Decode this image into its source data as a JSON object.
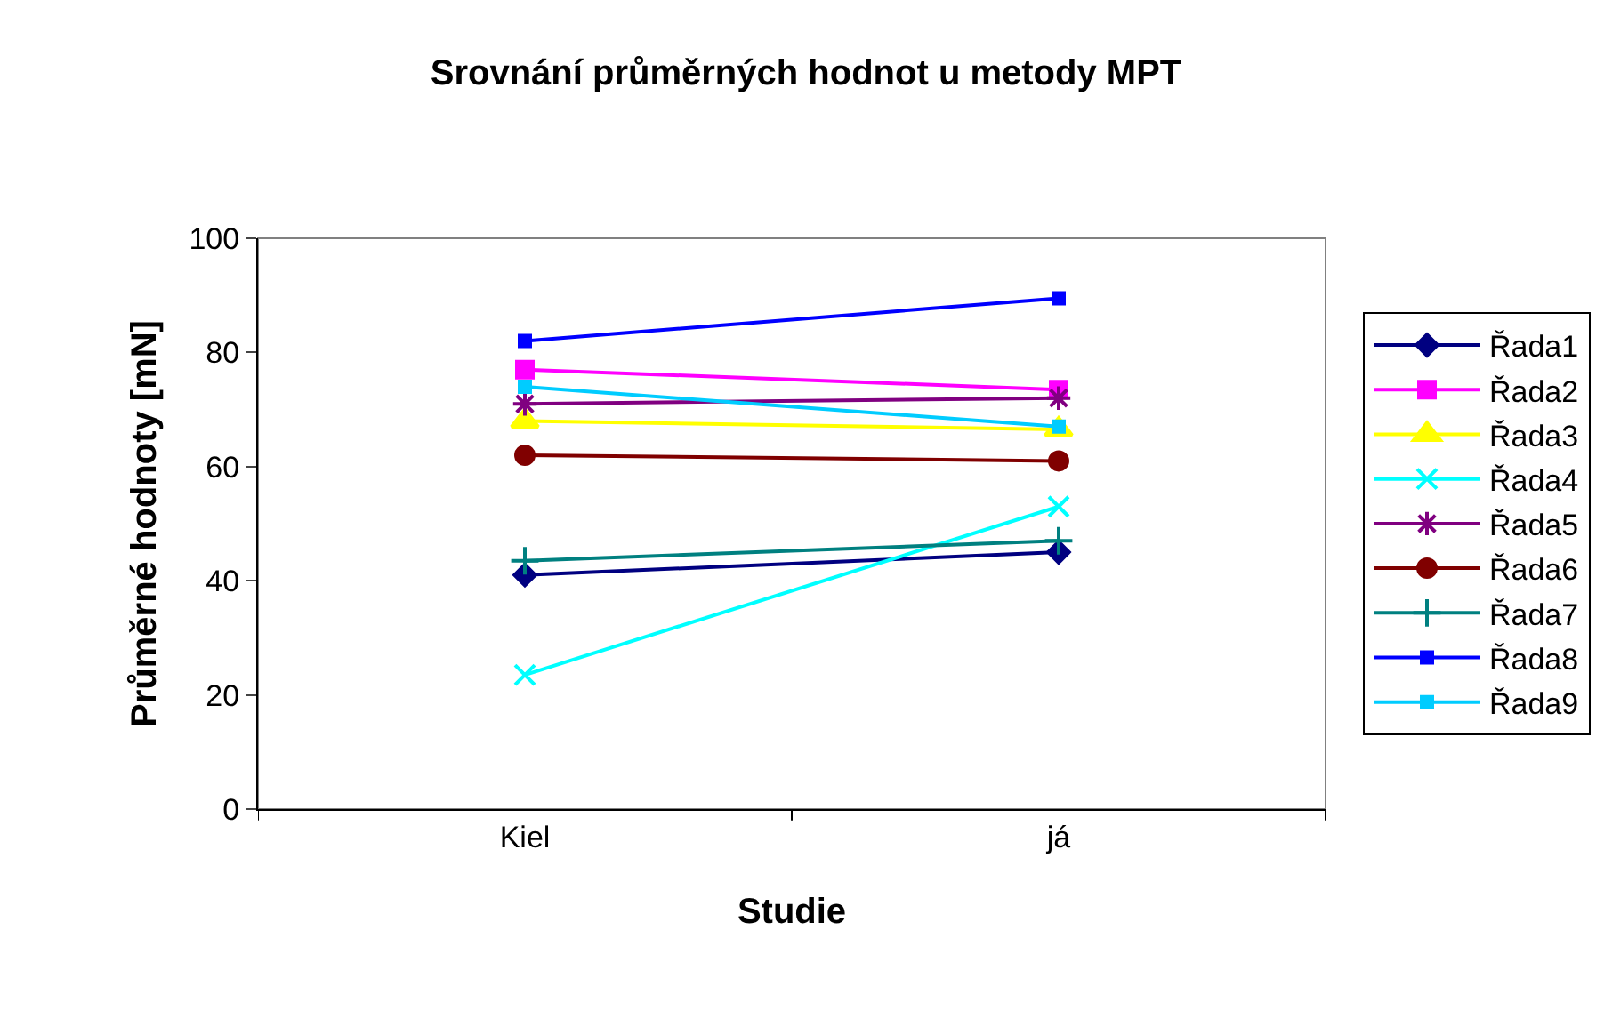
{
  "chart_data": {
    "type": "line",
    "title": "Srovnání průměrných hodnot u metody MPT",
    "xlabel": "Studie",
    "ylabel": "Průměrné hodnoty [mN]",
    "categories": [
      "Kiel",
      "já"
    ],
    "series": [
      {
        "name": "Řada1",
        "color": "#000080",
        "marker": "diamond",
        "values": [
          41,
          45
        ]
      },
      {
        "name": "Řada2",
        "color": "#ff00ff",
        "marker": "square",
        "values": [
          77,
          73.5
        ]
      },
      {
        "name": "Řada3",
        "color": "#ffff00",
        "marker": "triangle",
        "values": [
          68,
          66.5
        ]
      },
      {
        "name": "Řada4",
        "color": "#00ffff",
        "marker": "cross",
        "values": [
          23.5,
          53
        ]
      },
      {
        "name": "Řada5",
        "color": "#800080",
        "marker": "cross",
        "values": [
          71,
          72
        ]
      },
      {
        "name": "Řada6",
        "color": "#800000",
        "marker": "circle",
        "values": [
          62,
          61
        ]
      },
      {
        "name": "Řada7",
        "color": "#008080",
        "marker": "cross",
        "values": [
          43.5,
          47
        ]
      },
      {
        "name": "Řada8",
        "color": "#0000ff",
        "marker": "square",
        "values": [
          82,
          89.5
        ]
      },
      {
        "name": "Řada9",
        "color": "#00ccff",
        "marker": "square",
        "values": [
          74,
          67
        ]
      }
    ],
    "ylim": [
      0,
      100
    ],
    "yticks": [
      0,
      20,
      40,
      60,
      80,
      100
    ],
    "grid": false,
    "legend": "right"
  }
}
